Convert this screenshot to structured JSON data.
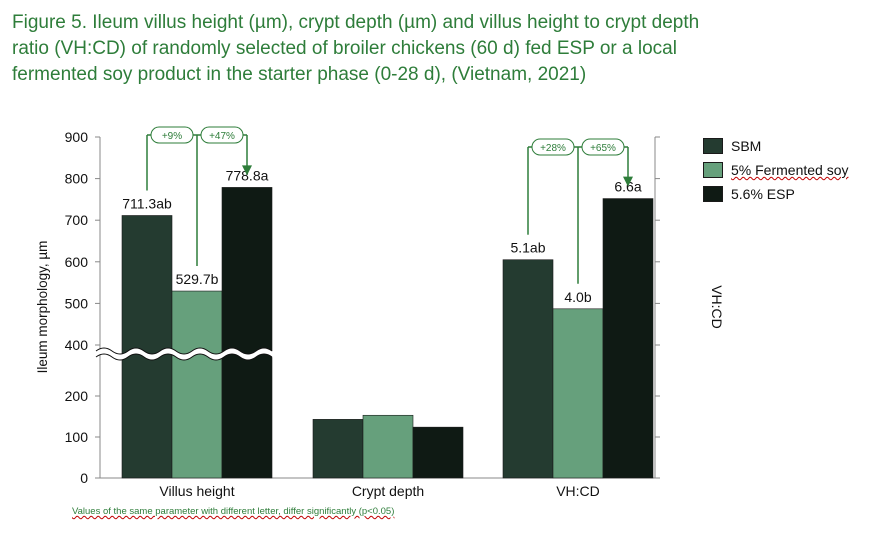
{
  "title_lines": [
    "Figure 5. Ileum villus height (µm), crypt depth (µm) and villus height to crypt depth",
    "ratio (VH:CD) of randomly selected of broiler chickens (60 d) fed ESP or a local",
    "fermented soy product in the starter phase (0-28 d), (Vietnam, 2021)"
  ],
  "footnote": "Values of the same parameter with different letter, differ significantly (p<0.05)",
  "chart_data": {
    "type": "bar",
    "title": "",
    "ylabel": "Ileum morphology, µm",
    "y2label": "VH:CD",
    "y_axis_ticks": [
      0,
      100,
      200,
      400,
      500,
      600,
      700,
      800,
      900
    ],
    "y_axis_break": "between 200 and 400",
    "categories": [
      "Villus height",
      "Crypt depth",
      "VH:CD"
    ],
    "series": [
      {
        "name": "SBM",
        "color": "#243b30",
        "values": [
          711.3,
          143,
          5.1
        ],
        "labels": [
          "711.3ab",
          "",
          "5.1ab"
        ]
      },
      {
        "name": "5% Fermented soy",
        "color": "#66a07c",
        "values": [
          529.7,
          153,
          4.0
        ],
        "labels": [
          "529.7b",
          "",
          "4.0b"
        ]
      },
      {
        "name": "5.6% ESP",
        "color": "#0f1a14",
        "values": [
          778.8,
          124,
          6.6
        ],
        "labels": [
          "778.8a",
          "",
          "6.6a"
        ]
      }
    ],
    "vhcd_display_scale_note": "VH:CD bars drawn on the secondary axis",
    "vhcd_display_values": [
      605,
      487,
      752
    ],
    "annotations": [
      {
        "group": "Villus height",
        "labels": [
          "+9%",
          "+47%"
        ]
      },
      {
        "group": "VH:CD",
        "labels": [
          "+28%",
          "+65%"
        ]
      }
    ],
    "legend_position": "right",
    "colors": {
      "accent": "#2e7d3a"
    }
  }
}
